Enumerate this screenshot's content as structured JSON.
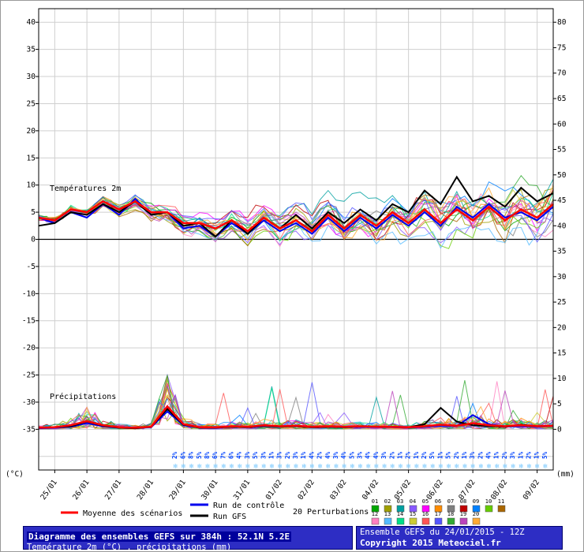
{
  "chart_data": {
    "type": "line",
    "title": "Diagramme des ensembles GEFS sur 384h : 52.1N 5.2E",
    "subtitle": "Température 2m (°C) , précipitations (mm)",
    "run_hours_total": 384,
    "step_hours": 12,
    "x_day_labels": [
      "25/01",
      "26/01",
      "27/01",
      "28/01",
      "29/01",
      "30/01",
      "31/01",
      "01/02",
      "02/02",
      "03/02",
      "04/02",
      "05/02",
      "06/02",
      "07/02",
      "08/02",
      "09/02"
    ],
    "left_axis": {
      "unit": "(°C)",
      "min": -35,
      "max": 40,
      "tick_step": 5
    },
    "right_axis": {
      "unit": "(mm)",
      "min": 0,
      "max": 80,
      "tick_step": 5
    },
    "labels": {
      "temp_section": "Températures 2m",
      "precip_section": "Précipitations"
    },
    "series": {
      "temp_mean": [
        4,
        3.5,
        5.5,
        5,
        7,
        5.5,
        7,
        5,
        5,
        3,
        3,
        2,
        3.5,
        1.5,
        4,
        2,
        3.5,
        1.5,
        4.5,
        2,
        4.5,
        2.5,
        5,
        3,
        5.5,
        3,
        5.5,
        3.5,
        6,
        3.5,
        5.5,
        4,
        6.5
      ],
      "temp_control": [
        4,
        3,
        5,
        4,
        6.5,
        4.5,
        7.5,
        4.5,
        5,
        2,
        2.5,
        0.5,
        3,
        1,
        3.5,
        1.5,
        3,
        1,
        4,
        1.5,
        4,
        2,
        4.5,
        2.5,
        5,
        2.5,
        6,
        4,
        6.5,
        4,
        5,
        3.5,
        6
      ],
      "temp_gfs": [
        2.5,
        3,
        5,
        4.5,
        6.5,
        5,
        7,
        4.5,
        5,
        2.5,
        3,
        0.5,
        3.5,
        1,
        4,
        2,
        4.5,
        2,
        5,
        3,
        5.5,
        3.5,
        6.5,
        5,
        9,
        6.5,
        11.5,
        7,
        8,
        6,
        9.5,
        7,
        8.5
      ],
      "precip_mean": [
        0.3,
        0.4,
        0.8,
        1.6,
        0.8,
        0.4,
        0.3,
        0.5,
        4.5,
        1,
        0.4,
        0.4,
        0.6,
        0.5,
        0.8,
        0.6,
        0.7,
        0.5,
        0.6,
        0.5,
        0.6,
        0.5,
        0.5,
        0.4,
        0.6,
        0.9,
        0.7,
        1.2,
        0.8,
        0.6,
        0.8,
        0.6,
        0.7
      ],
      "precip_control": [
        0.2,
        0.3,
        0.5,
        1.2,
        0.6,
        0.3,
        0.2,
        0.4,
        3.5,
        0.8,
        0.3,
        0.3,
        0.5,
        0.4,
        0.6,
        0.5,
        0.6,
        0.4,
        0.5,
        0.4,
        0.5,
        0.4,
        0.4,
        0.3,
        0.5,
        0.7,
        0.6,
        2.8,
        1,
        0.5,
        0.6,
        0.5,
        0.6
      ],
      "precip_gfs": [
        0.3,
        0.4,
        0.6,
        1.5,
        0.7,
        0.3,
        0.2,
        0.5,
        4,
        0.9,
        0.3,
        0.3,
        0.5,
        0.4,
        0.7,
        0.5,
        0.6,
        0.4,
        0.5,
        0.4,
        0.6,
        0.5,
        0.5,
        0.4,
        1,
        4.2,
        1.5,
        0.8,
        0.6,
        0.5,
        0.9,
        0.6,
        0.7
      ]
    },
    "n_perturbations": 20,
    "perturbation_colors": [
      "#00a600",
      "#9f9f00",
      "#00a0a0",
      "#8858ff",
      "#ff00ff",
      "#ff8c00",
      "#7f7f7f",
      "#bf0000",
      "#0080ff",
      "#66cc00",
      "#aa6600",
      "#ff80c0",
      "#55bbff",
      "#00dd88",
      "#cccc33",
      "#ff5555",
      "#5555ff",
      "#33aa33",
      "#bb44bb",
      "#ffaa33"
    ],
    "snow_prob": {
      "start_hour": 102,
      "step_hours": 6,
      "values": [
        "2%",
        "6%",
        "8%",
        "5%",
        "8%",
        "6%",
        "7%",
        "6%",
        "4%",
        "3%",
        "5%",
        "3%",
        "1%",
        "3%",
        "2%",
        "3%",
        "1%",
        "4%",
        "2%",
        "4%",
        "3%",
        "4%",
        "5%",
        "3%",
        "4%",
        "4%",
        "3%",
        "2%",
        "1%",
        "2%",
        "1%",
        "2%",
        "5%",
        "1%",
        "5%",
        "2%",
        "1%",
        "3%",
        "2%",
        "4%",
        "1%",
        "2%",
        "3%",
        "1%",
        "2%",
        "1%",
        "5%"
      ]
    }
  },
  "legend": {
    "mean_label": "Moyenne des scénarios",
    "control_label": "Run de contrôle",
    "gfs_label": "Run GFS",
    "perturbations_label": "20 Perturbations",
    "member_numbers": [
      "01",
      "02",
      "03",
      "04",
      "05",
      "06",
      "07",
      "08",
      "09",
      "10",
      "11",
      "12",
      "13",
      "14",
      "15",
      "16",
      "17",
      "18",
      "19",
      "20"
    ]
  },
  "footer": {
    "left_line1": "Diagramme des ensembles GEFS sur 384h : 52.1N 5.2E",
    "left_line2": "Température 2m (°C) , précipitations (mm)",
    "right_line1": "Ensemble GEFS du 24/01/2015 - 12Z",
    "right_line2": "Copyright 2015 Meteociel.fr"
  },
  "colors": {
    "mean": "#ff0000",
    "control": "#0000ee",
    "gfs": "#000000",
    "grid": "#cfcfcf",
    "zero_line": "#000000",
    "snow_text": "#0043ff",
    "snowflake": "#79c9ff"
  }
}
